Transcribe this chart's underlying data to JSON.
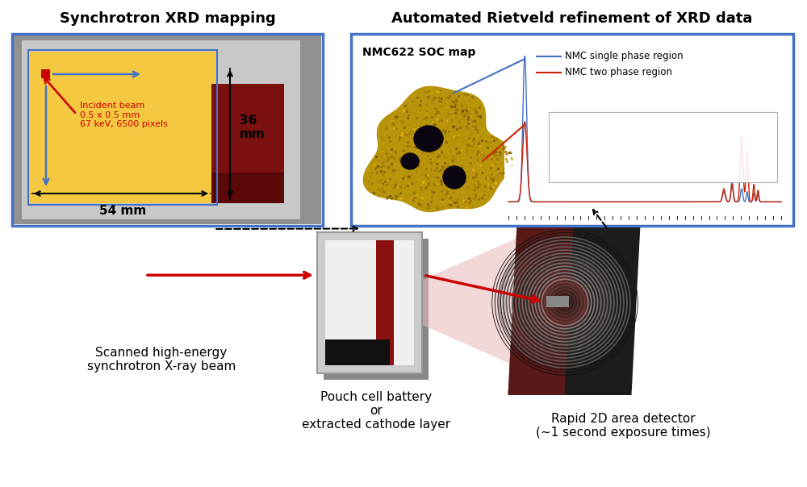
{
  "left_panel_title": "Synchrotron XRD mapping",
  "right_panel_title": "Automated Rietveld refinement of XRD data",
  "nmc_label": "NMC622 SOC map",
  "legend_blue": "NMC single phase region",
  "legend_red": "NMC two phase region",
  "beam_label": "Incident beam\n0.5 x 0.5 mm\n67 keV, 6500 pixels",
  "width_label": "54 mm",
  "height_label": "36\nmm",
  "bottom_left_label": "Scanned high-energy\nsynchrotron X-ray beam",
  "bottom_mid_label": "Pouch cell battery\nor\nextracted cathode layer",
  "bottom_right_label": "Rapid 2D area detector\n(~1 second exposure times)",
  "bg_color": "#ffffff",
  "panel_border_color": "#4472c4"
}
